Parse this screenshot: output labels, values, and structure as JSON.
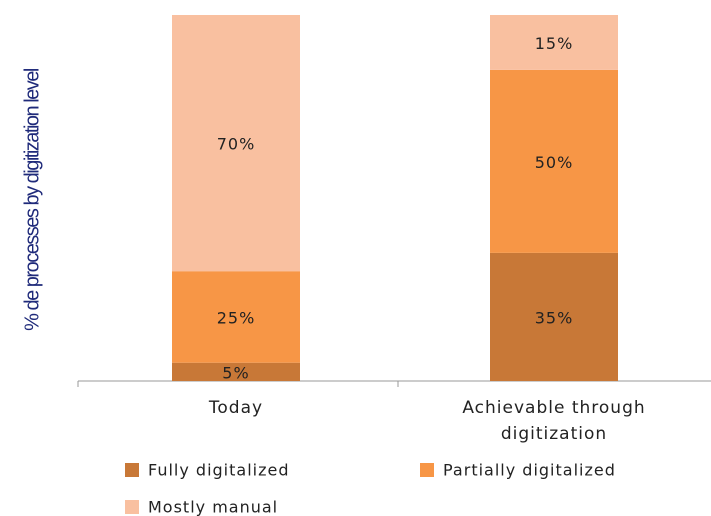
{
  "chart_data": {
    "type": "stacked_bar",
    "y_label": "% de processes by digitization level",
    "categories": [
      "Today",
      "Achievable through digitization"
    ],
    "series": [
      {
        "name": "Fully digitalized",
        "color": "#c87837",
        "values": [
          5,
          35
        ],
        "value_labels": [
          "5%",
          "35%"
        ]
      },
      {
        "name": "Partially digitalized",
        "color": "#f79646",
        "values": [
          25,
          50
        ],
        "value_labels": [
          "25%",
          "50%"
        ]
      },
      {
        "name": "Mostly manual",
        "color": "#f9c0a0",
        "values": [
          70,
          15
        ],
        "value_labels": [
          "70%",
          "15%"
        ]
      }
    ],
    "ylim": [
      0,
      100
    ]
  }
}
